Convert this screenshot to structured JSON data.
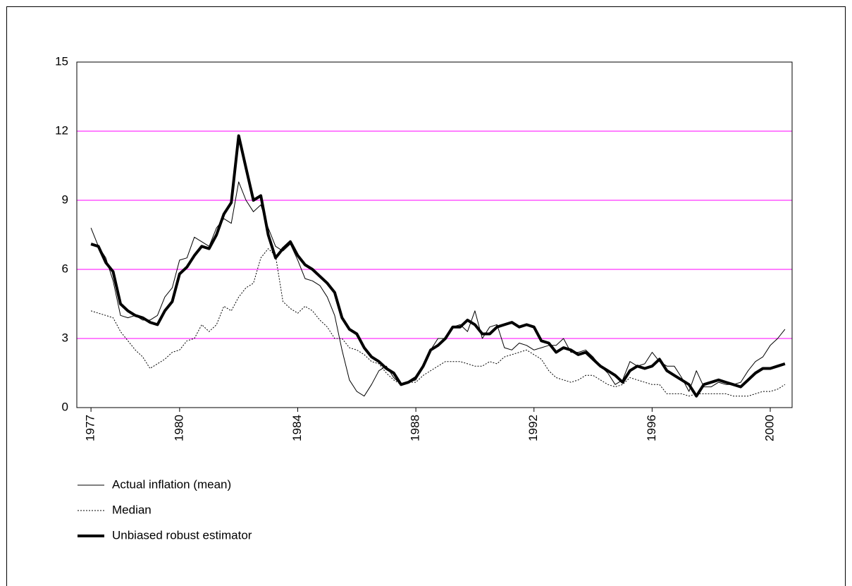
{
  "chart_data": {
    "type": "line",
    "x": [
      1977,
      1977.25,
      1977.5,
      1977.75,
      1978,
      1978.25,
      1978.5,
      1978.75,
      1979,
      1979.25,
      1979.5,
      1979.75,
      1980,
      1980.25,
      1980.5,
      1980.75,
      1981,
      1981.25,
      1981.5,
      1981.75,
      1982,
      1982.25,
      1982.5,
      1982.75,
      1983,
      1983.25,
      1983.5,
      1983.75,
      1984,
      1984.25,
      1984.5,
      1984.75,
      1985,
      1985.25,
      1985.5,
      1985.75,
      1986,
      1986.25,
      1986.5,
      1986.75,
      1987,
      1987.25,
      1987.5,
      1987.75,
      1988,
      1988.25,
      1988.5,
      1988.75,
      1989,
      1989.25,
      1989.5,
      1989.75,
      1990,
      1990.25,
      1990.5,
      1990.75,
      1991,
      1991.25,
      1991.5,
      1991.75,
      1992,
      1992.25,
      1992.5,
      1992.75,
      1993,
      1993.25,
      1993.5,
      1993.75,
      1994,
      1994.25,
      1994.5,
      1994.75,
      1995,
      1995.25,
      1995.5,
      1995.75,
      1996,
      1996.25,
      1996.5,
      1996.75,
      1997,
      1997.25,
      1997.5,
      1997.75,
      1998,
      1998.25,
      1998.5,
      1998.75,
      1999,
      1999.25,
      1999.5,
      1999.75,
      2000,
      2000.25,
      2000.5
    ],
    "series": [
      {
        "name": "Actual inflation (mean)",
        "color": "#000000",
        "values": [
          7.8,
          7.0,
          6.5,
          5.5,
          4.0,
          3.9,
          4.0,
          3.8,
          3.8,
          4.0,
          4.8,
          5.2,
          6.4,
          6.5,
          7.4,
          7.2,
          7.0,
          7.8,
          8.2,
          8.0,
          9.8,
          9.0,
          8.5,
          8.8,
          7.8,
          7.0,
          6.8,
          7.1,
          6.4,
          5.6,
          5.5,
          5.3,
          4.8,
          4.0,
          2.5,
          1.2,
          0.7,
          0.5,
          1.0,
          1.6,
          1.8,
          1.3,
          1.0,
          1.1,
          1.2,
          1.9,
          2.5,
          3.0,
          3.0,
          3.5,
          3.6,
          3.3,
          4.2,
          3.0,
          3.5,
          3.6,
          2.6,
          2.5,
          2.8,
          2.7,
          2.5,
          2.6,
          2.7,
          2.7,
          3.0,
          2.4,
          2.4,
          2.5,
          2.2,
          1.8,
          1.5,
          1.0,
          1.2,
          2.0,
          1.8,
          1.9,
          2.4,
          2.0,
          1.8,
          1.8,
          1.3,
          0.7,
          1.6,
          0.9,
          0.9,
          1.1,
          1.0,
          1.0,
          1.1,
          1.6,
          2.0,
          2.2,
          2.7,
          3.0,
          3.4
        ]
      },
      {
        "name": "Median",
        "color": "#000000",
        "values": [
          4.2,
          4.1,
          4.0,
          3.9,
          3.3,
          2.9,
          2.5,
          2.2,
          1.7,
          1.9,
          2.1,
          2.4,
          2.5,
          2.9,
          3.0,
          3.6,
          3.3,
          3.6,
          4.4,
          4.2,
          4.8,
          5.2,
          5.4,
          6.5,
          6.9,
          6.6,
          4.6,
          4.3,
          4.1,
          4.4,
          4.2,
          3.8,
          3.5,
          3.0,
          3.0,
          2.6,
          2.5,
          2.3,
          2.0,
          1.9,
          1.5,
          1.2,
          1.0,
          1.1,
          1.1,
          1.4,
          1.6,
          1.8,
          2.0,
          2.0,
          2.0,
          1.9,
          1.8,
          1.8,
          2.0,
          1.9,
          2.2,
          2.3,
          2.4,
          2.5,
          2.3,
          2.1,
          1.6,
          1.3,
          1.2,
          1.1,
          1.2,
          1.4,
          1.4,
          1.2,
          1.0,
          0.9,
          1.0,
          1.3,
          1.2,
          1.1,
          1.0,
          1.0,
          0.6,
          0.6,
          0.6,
          0.5,
          0.6,
          0.6,
          0.6,
          0.6,
          0.6,
          0.5,
          0.5,
          0.5,
          0.6,
          0.7,
          0.7,
          0.8,
          1.0
        ]
      },
      {
        "name": "Unbiased robust estimator",
        "color": "#000000",
        "values": [
          7.1,
          7.0,
          6.3,
          5.9,
          4.5,
          4.2,
          4.0,
          3.9,
          3.7,
          3.6,
          4.2,
          4.6,
          5.8,
          6.1,
          6.6,
          7.0,
          6.9,
          7.5,
          8.4,
          8.9,
          11.8,
          10.4,
          9.0,
          9.2,
          7.5,
          6.5,
          6.9,
          7.2,
          6.6,
          6.2,
          6.0,
          5.7,
          5.4,
          5.0,
          3.9,
          3.4,
          3.2,
          2.6,
          2.2,
          2.0,
          1.7,
          1.5,
          1.0,
          1.1,
          1.3,
          1.8,
          2.5,
          2.7,
          3.0,
          3.5,
          3.5,
          3.8,
          3.6,
          3.2,
          3.2,
          3.5,
          3.6,
          3.7,
          3.5,
          3.6,
          3.5,
          2.9,
          2.8,
          2.4,
          2.6,
          2.5,
          2.3,
          2.4,
          2.1,
          1.8,
          1.6,
          1.4,
          1.1,
          1.6,
          1.8,
          1.7,
          1.8,
          2.1,
          1.6,
          1.4,
          1.2,
          1.0,
          0.5,
          1.0,
          1.1,
          1.2,
          1.1,
          1.0,
          0.9,
          1.2,
          1.5,
          1.7,
          1.7,
          1.8,
          1.9
        ]
      }
    ],
    "xlim": [
      1976.52,
      2000.74
    ],
    "xticks": [
      1977,
      1980,
      1984,
      1988,
      1992,
      1996,
      2000
    ],
    "ylim": [
      0,
      15
    ],
    "yticks": [
      0,
      3,
      6,
      9,
      12,
      15
    ],
    "grid": true,
    "grid_color": "#ff00ff"
  }
}
